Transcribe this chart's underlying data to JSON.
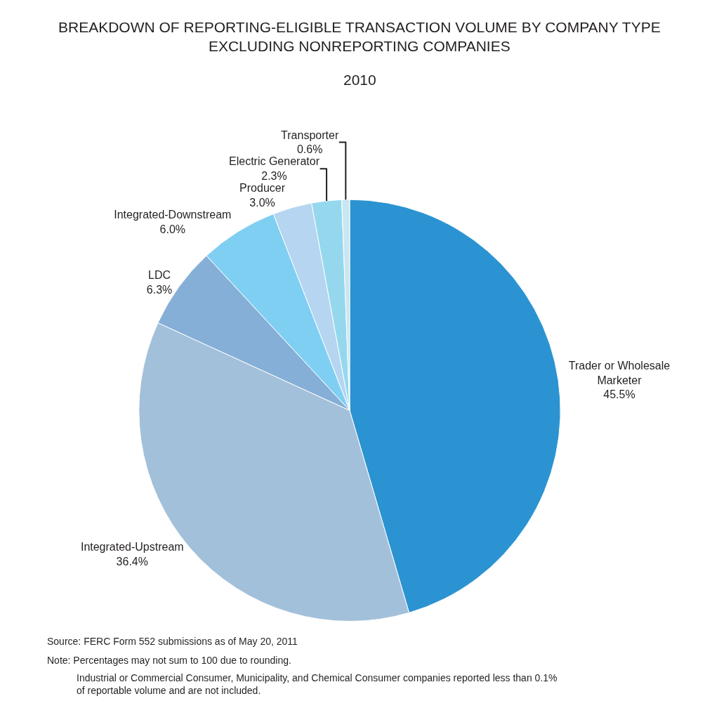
{
  "chart_data": {
    "type": "pie",
    "title": "BREAKDOWN OF REPORTING-ELIGIBLE TRANSACTION VOLUME BY COMPANY TYPE\nEXCLUDING NONREPORTING COMPANIES",
    "subtitle": "2010",
    "categories": [
      "Trader or Wholesale\nMarketer",
      "Integrated-Upstream",
      "LDC",
      "Integrated-Downstream",
      "Producer",
      "Electric Generator",
      "Transporter"
    ],
    "values": [
      45.5,
      36.4,
      6.3,
      6.0,
      3.0,
      2.3,
      0.6
    ],
    "value_labels": [
      "45.5%",
      "36.4%",
      "6.3%",
      "6.0%",
      "3.0%",
      "2.3%",
      "0.6%"
    ],
    "colors": [
      "#2b93d1",
      "#a3c0da",
      "#85afd6",
      "#7fcff3",
      "#b5d5f0",
      "#95d8ee",
      "#c9e6f2"
    ],
    "legend": false,
    "annotations": [
      "Source: FERC Form 552 submissions as of May 20, 2011",
      "Note: Percentages may not sum to 100 due to rounding.",
      "Industrial or Commercial Consumer, Municipality, and Chemical Consumer companies reported less than 0.1%\nof reportable volume and are not included."
    ]
  }
}
